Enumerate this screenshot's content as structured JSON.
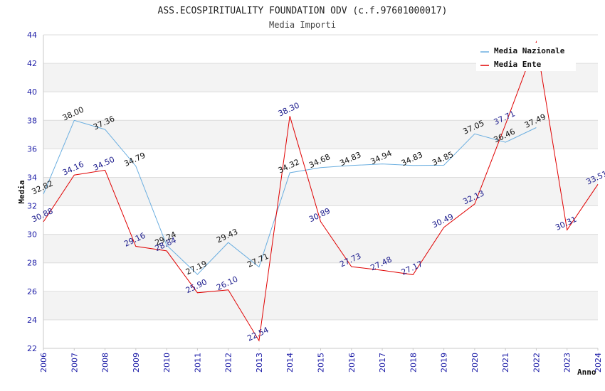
{
  "chart_data": {
    "type": "line",
    "title": "ASS.ECOSPIRITUALITY FOUNDATION ODV (c.f.97601000017)",
    "subtitle": "Media Importi",
    "xlabel": "Anno",
    "ylabel": "Media",
    "ylim": [
      22,
      44
    ],
    "yticks": [
      22,
      24,
      26,
      28,
      30,
      32,
      34,
      36,
      38,
      40,
      42,
      44
    ],
    "x": [
      2006,
      2007,
      2008,
      2009,
      2010,
      2011,
      2012,
      2013,
      2014,
      2015,
      2016,
      2017,
      2018,
      2019,
      2020,
      2021,
      2022,
      2023,
      2024
    ],
    "grid": "horizontal bands",
    "legend_position": "top-right",
    "series": [
      {
        "name": "Media Nazionale",
        "color": "#6aaee0",
        "label_color": "#111111",
        "values": [
          32.82,
          38.0,
          37.36,
          34.79,
          29.24,
          27.19,
          29.43,
          27.71,
          34.32,
          34.68,
          34.83,
          34.94,
          34.83,
          34.85,
          37.05,
          36.46,
          37.49,
          null,
          null
        ],
        "labels": [
          "32.82",
          "38.00",
          "37.36",
          "34.79",
          "29.24",
          "27.19",
          "29.43",
          "27.71",
          "34.32",
          "34.68",
          "34.83",
          "34.94",
          "34.83",
          "34.85",
          "37.05",
          "36.46",
          "37.49",
          null,
          null
        ]
      },
      {
        "name": "Media Ente",
        "color": "#e00000",
        "label_color": "#1a1a8c",
        "values": [
          30.88,
          34.16,
          34.5,
          29.16,
          28.84,
          25.9,
          26.1,
          22.54,
          38.3,
          30.89,
          27.73,
          27.48,
          27.17,
          30.49,
          32.13,
          37.71,
          43.5,
          30.31,
          33.51
        ],
        "labels": [
          "30.88",
          "34.16",
          "34.50",
          "29.16",
          "28.84",
          "25.90",
          "26.10",
          "22.54",
          "38.30",
          "30.89",
          "27.73",
          "27.48",
          "27.17",
          "30.49",
          "32.13",
          "37.71",
          null,
          "30.31",
          "33.51"
        ]
      }
    ]
  }
}
